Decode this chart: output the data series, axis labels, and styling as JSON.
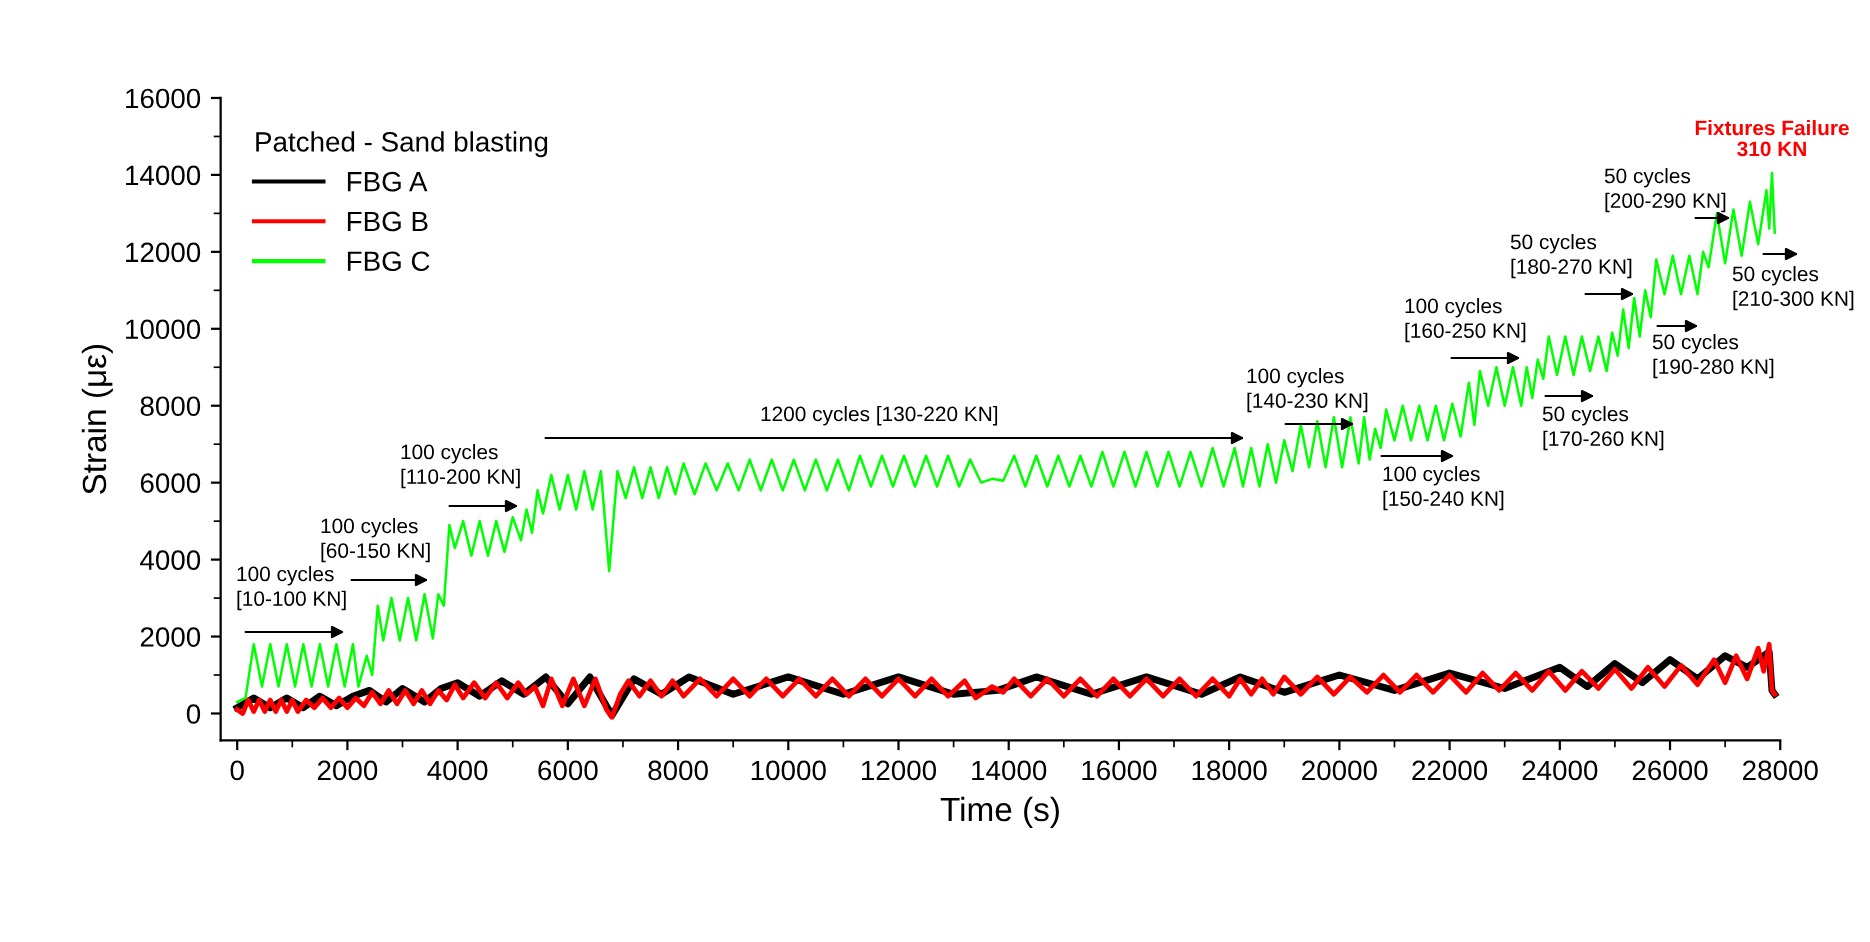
{
  "chart_data": {
    "type": "line",
    "xlabel": "Time (s)",
    "ylabel": "Strain (με)",
    "legend_title": "Patched - Sand blasting",
    "legend": "top left",
    "grid": false,
    "marker": "none",
    "line_style": "solid",
    "xlim": [
      -300,
      28000
    ],
    "xticks": [
      0,
      2000,
      4000,
      6000,
      8000,
      10000,
      12000,
      14000,
      16000,
      18000,
      20000,
      22000,
      24000,
      26000,
      28000
    ],
    "ylim": [
      -700,
      16000
    ],
    "yticks": [
      0,
      2000,
      4000,
      6000,
      8000,
      10000,
      12000,
      14000,
      16000
    ],
    "series": [
      {
        "name": "FBG A",
        "color": "#000000",
        "x": [
          0,
          300,
          600,
          900,
          1200,
          1500,
          1800,
          2100,
          2400,
          2700,
          3000,
          3400,
          3700,
          4000,
          4400,
          4800,
          5200,
          5600,
          6000,
          6400,
          6800,
          7200,
          7700,
          8200,
          9000,
          10000,
          11000,
          12000,
          13000,
          13800,
          14500,
          15500,
          16500,
          17500,
          18200,
          19000,
          20000,
          21000,
          22000,
          23000,
          24000,
          24500,
          25000,
          25500,
          26000,
          26500,
          27000,
          27400,
          27800,
          27850,
          27900
        ],
        "values": [
          150,
          400,
          150,
          400,
          150,
          450,
          200,
          450,
          600,
          300,
          650,
          300,
          650,
          800,
          450,
          850,
          500,
          950,
          250,
          950,
          -50,
          900,
          500,
          950,
          500,
          950,
          500,
          950,
          500,
          600,
          950,
          500,
          950,
          500,
          950,
          550,
          1000,
          600,
          1050,
          650,
          1200,
          700,
          1300,
          800,
          1400,
          900,
          1500,
          1200,
          1600,
          600,
          500
        ]
      },
      {
        "name": "FBG B",
        "color": "#ff0000",
        "x": [
          0,
          100,
          200,
          300,
          400,
          500,
          600,
          700,
          800,
          900,
          1000,
          1100,
          1250,
          1400,
          1550,
          1700,
          1850,
          2000,
          2150,
          2300,
          2450,
          2600,
          2750,
          2900,
          3050,
          3200,
          3350,
          3500,
          3650,
          3800,
          3950,
          4100,
          4300,
          4500,
          4700,
          4900,
          5100,
          5250,
          5400,
          5550,
          5700,
          5900,
          6100,
          6300,
          6500,
          6700,
          6800,
          6950,
          7100,
          7300,
          7500,
          7700,
          7900,
          8100,
          8400,
          8700,
          9000,
          9300,
          9600,
          9900,
          10200,
          10500,
          10800,
          11100,
          11400,
          11700,
          12000,
          12300,
          12600,
          12900,
          13200,
          13400,
          13700,
          13900,
          14100,
          14400,
          14700,
          15000,
          15300,
          15600,
          15900,
          16200,
          16500,
          16800,
          17100,
          17400,
          17700,
          18000,
          18200,
          18400,
          18600,
          18800,
          19000,
          19300,
          19600,
          19900,
          20200,
          20500,
          20800,
          21100,
          21400,
          21700,
          22000,
          22300,
          22600,
          22900,
          23200,
          23500,
          23800,
          24100,
          24400,
          24700,
          25000,
          25300,
          25600,
          25900,
          26200,
          26500,
          26800,
          27000,
          27200,
          27400,
          27600,
          27700,
          27800,
          27850,
          27900
        ],
        "values": [
          100,
          0,
          350,
          50,
          350,
          50,
          350,
          50,
          350,
          50,
          350,
          50,
          350,
          150,
          400,
          150,
          400,
          150,
          400,
          200,
          550,
          250,
          600,
          250,
          600,
          250,
          600,
          250,
          600,
          350,
          750,
          400,
          800,
          400,
          800,
          400,
          800,
          500,
          700,
          200,
          900,
          200,
          900,
          200,
          900,
          100,
          -100,
          500,
          850,
          450,
          850,
          450,
          850,
          450,
          900,
          450,
          900,
          450,
          900,
          450,
          900,
          450,
          900,
          450,
          900,
          450,
          900,
          450,
          900,
          450,
          850,
          400,
          700,
          550,
          900,
          450,
          900,
          450,
          900,
          450,
          900,
          450,
          900,
          450,
          900,
          450,
          900,
          450,
          900,
          500,
          900,
          500,
          950,
          500,
          950,
          500,
          950,
          550,
          1000,
          550,
          1000,
          550,
          1000,
          550,
          1050,
          600,
          1050,
          600,
          1100,
          600,
          1100,
          650,
          1150,
          650,
          1200,
          700,
          1250,
          750,
          1400,
          800,
          1500,
          900,
          1700,
          1100,
          1800,
          600,
          500
        ]
      },
      {
        "name": "FBG C",
        "color": "#00ff00",
        "x": [
          0,
          150,
          300,
          450,
          600,
          750,
          900,
          1050,
          1200,
          1350,
          1500,
          1650,
          1800,
          1950,
          2100,
          2200,
          2350,
          2450,
          2550,
          2650,
          2800,
          2950,
          3100,
          3250,
          3400,
          3550,
          3650,
          3750,
          3850,
          3950,
          4100,
          4250,
          4400,
          4550,
          4700,
          4850,
          5000,
          5150,
          5250,
          5350,
          5450,
          5550,
          5700,
          5850,
          6000,
          6150,
          6300,
          6450,
          6600,
          6750,
          6900,
          7050,
          7200,
          7350,
          7500,
          7650,
          7800,
          7950,
          8100,
          8300,
          8500,
          8700,
          8900,
          9100,
          9300,
          9500,
          9700,
          9900,
          10100,
          10300,
          10500,
          10700,
          10900,
          11100,
          11300,
          11500,
          11700,
          11900,
          12100,
          12300,
          12500,
          12700,
          12900,
          13100,
          13300,
          13500,
          13700,
          13900,
          14100,
          14300,
          14500,
          14700,
          14900,
          15100,
          15300,
          15500,
          15700,
          15900,
          16100,
          16300,
          16500,
          16700,
          16900,
          17100,
          17300,
          17500,
          17700,
          17900,
          18100,
          18250,
          18400,
          18550,
          18700,
          18850,
          19000,
          19150,
          19300,
          19450,
          19600,
          19750,
          19900,
          20050,
          20200,
          20350,
          20450,
          20550,
          20650,
          20750,
          20850,
          21000,
          21150,
          21300,
          21450,
          21600,
          21750,
          21900,
          22050,
          22200,
          22350,
          22450,
          22550,
          22700,
          22850,
          23000,
          23150,
          23300,
          23400,
          23500,
          23600,
          23700,
          23800,
          23950,
          24100,
          24250,
          24400,
          24550,
          24700,
          24850,
          24950,
          25050,
          25150,
          25250,
          25350,
          25450,
          25550,
          25650,
          25750,
          25900,
          26050,
          26200,
          26350,
          26500,
          26600,
          26700,
          26850,
          27000,
          27150,
          27300,
          27450,
          27600,
          27750,
          27800,
          27850,
          27900
        ],
        "values": [
          300,
          400,
          1800,
          700,
          1800,
          700,
          1800,
          700,
          1800,
          700,
          1800,
          700,
          1800,
          700,
          1800,
          700,
          1500,
          1000,
          2800,
          1900,
          3000,
          1900,
          3000,
          1900,
          3100,
          1950,
          3100,
          2800,
          4900,
          4300,
          5000,
          4100,
          5000,
          4100,
          5000,
          4200,
          5100,
          4500,
          5300,
          4700,
          5800,
          5200,
          6200,
          5300,
          6200,
          5300,
          6300,
          5300,
          6300,
          3700,
          6300,
          5600,
          6400,
          5600,
          6400,
          5600,
          6400,
          5700,
          6500,
          5700,
          6500,
          5800,
          6500,
          5800,
          6600,
          5800,
          6600,
          5800,
          6600,
          5800,
          6600,
          5800,
          6600,
          5800,
          6700,
          5900,
          6700,
          5900,
          6700,
          5900,
          6700,
          5900,
          6700,
          5900,
          6600,
          6000,
          6100,
          6050,
          6700,
          5900,
          6700,
          5900,
          6700,
          5900,
          6700,
          5900,
          6800,
          5900,
          6800,
          5900,
          6800,
          5900,
          6800,
          5900,
          6800,
          5900,
          6900,
          5900,
          6900,
          5900,
          6900,
          5900,
          7000,
          6000,
          7100,
          6300,
          7500,
          6400,
          7600,
          6400,
          7700,
          6400,
          7700,
          6500,
          7700,
          6600,
          7400,
          6900,
          7900,
          7100,
          8000,
          7100,
          8000,
          7100,
          8000,
          7100,
          8050,
          7200,
          8600,
          7500,
          8900,
          8000,
          9000,
          8000,
          9000,
          8000,
          9000,
          8200,
          9200,
          8700,
          9800,
          8800,
          9800,
          8800,
          9800,
          8900,
          9800,
          8900,
          9900,
          9300,
          10500,
          9500,
          10800,
          9800,
          11000,
          10300,
          11800,
          10900,
          11900,
          10900,
          11900,
          10900,
          12000,
          11600,
          13000,
          11700,
          13100,
          11900,
          13300,
          12200,
          13600,
          12600,
          14050,
          12500
        ]
      }
    ],
    "annotations": [
      "100 cycles\n[10-100 KN]",
      "100 cycles\n[60-150 KN]",
      "100 cycles\n[110-200 KN]",
      "1200 cycles [130-220 KN]",
      "100 cycles\n[140-230 KN]",
      "100 cycles\n[150-240 KN]",
      "100 cycles\n[160-250 KN]",
      "50 cycles\n[170-260 KN]",
      "50 cycles\n[180-270 KN]",
      "50 cycles\n[190-280 KN]",
      "50 cycles\n[200-290 KN]",
      "50 cycles\n[210-300 KN]",
      "Fixtures Failure\n310 KN"
    ]
  }
}
